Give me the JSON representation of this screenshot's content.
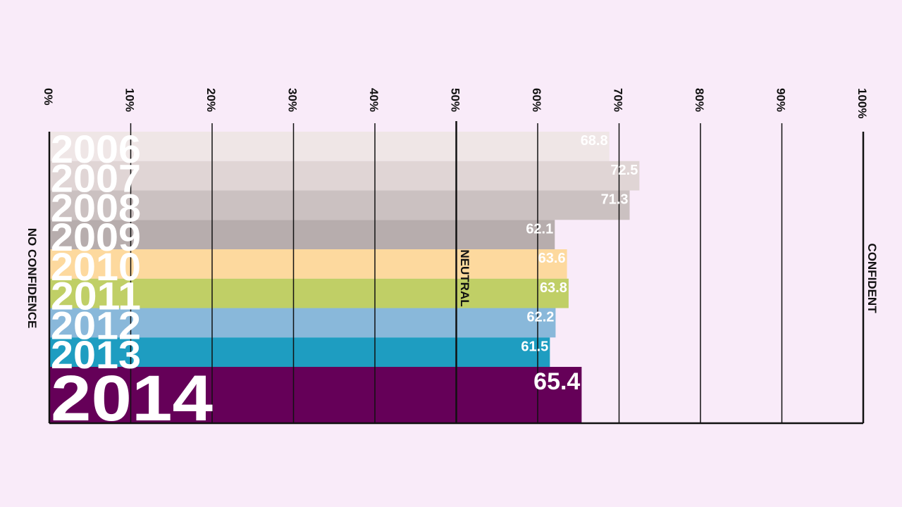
{
  "chart_data": {
    "type": "bar",
    "orientation": "horizontal",
    "title": "",
    "xlim": [
      0,
      100
    ],
    "x_ticks": [
      "0%",
      "10%",
      "20%",
      "30%",
      "40%",
      "50%",
      "60%",
      "70%",
      "80%",
      "90%",
      "100%"
    ],
    "categories": [
      "2006",
      "2007",
      "2008",
      "2009",
      "2010",
      "2011",
      "2012",
      "2013",
      "2014"
    ],
    "values": [
      68.8,
      72.5,
      71.3,
      62.1,
      63.6,
      63.8,
      62.2,
      61.5,
      65.4
    ],
    "value_labels": [
      "68.8",
      "72.5",
      "71.3",
      "62.1",
      "63.6",
      "63.8",
      "62.2",
      "61.5",
      "65.4"
    ],
    "colors": [
      "#efe6e6",
      "#e0d5d5",
      "#cbc1c1",
      "#b7adad",
      "#fdd99e",
      "#c0cf66",
      "#89b8da",
      "#1e9dc1",
      "#650058"
    ],
    "highlight_index": 8,
    "left_label": "NO CONFIDENCE",
    "center_label": "NEUTRAL",
    "right_label": "CONFIDENT",
    "grid": true
  }
}
